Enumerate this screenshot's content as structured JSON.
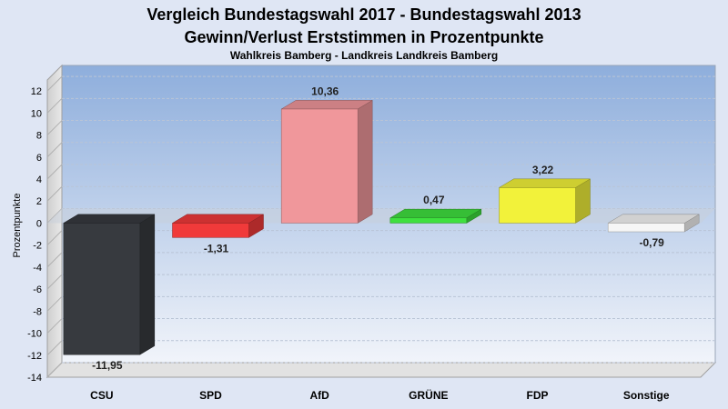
{
  "chart_data": {
    "type": "bar",
    "title": "Vergleich Bundestagswahl 2017 - Bundestagswahl 2013",
    "subtitle": "Gewinn/Verlust Erststimmen in Prozentpunkte",
    "subsubtitle": "Wahlkreis Bamberg - Landkreis Landkreis Bamberg",
    "ylabel": "Prozentpunkte",
    "xlabel": "",
    "ylim": [
      -14,
      13
    ],
    "yticks": [
      12,
      10,
      8,
      6,
      4,
      2,
      0,
      -2,
      -4,
      -6,
      -8,
      -10,
      -12,
      -14
    ],
    "grid": true,
    "legend": "none",
    "categories": [
      "CSU",
      "SPD",
      "AfD",
      "GRÜNE",
      "FDP",
      "Sonstige"
    ],
    "values": [
      -11.95,
      -1.31,
      10.36,
      0.47,
      3.22,
      -0.79
    ],
    "value_labels": [
      "-11,95",
      "-1,31",
      "10,36",
      "0,47",
      "3,22",
      "-0,79"
    ],
    "colors": [
      "#373a3f",
      "#f03a3a",
      "#f0979b",
      "#3fe03f",
      "#f2f23a",
      "#f6f6f6"
    ]
  }
}
